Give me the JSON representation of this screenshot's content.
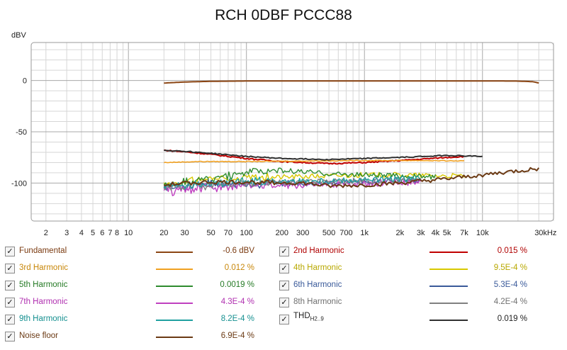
{
  "chart_data": {
    "type": "line",
    "title": "RCH 0DBF PCCC88",
    "ylabel": "dBV",
    "xunit": "kHz",
    "xscale": "log",
    "xlim": [
      1.5,
      40000
    ],
    "ylim": [
      -137,
      37
    ],
    "grid": true,
    "y_ticks": [
      {
        "v": 0,
        "label": "0"
      },
      {
        "v": -50,
        "label": "-50"
      },
      {
        "v": -100,
        "label": "-100"
      }
    ],
    "x_ticks": [
      {
        "v": 2,
        "label": "2"
      },
      {
        "v": 3,
        "label": "3"
      },
      {
        "v": 4,
        "label": "4"
      },
      {
        "v": 5,
        "label": "5"
      },
      {
        "v": 6,
        "label": "6"
      },
      {
        "v": 7,
        "label": "7"
      },
      {
        "v": 8,
        "label": "8"
      },
      {
        "v": 10,
        "label": "10"
      },
      {
        "v": 20,
        "label": "20"
      },
      {
        "v": 30,
        "label": "30"
      },
      {
        "v": 50,
        "label": "50"
      },
      {
        "v": 70,
        "label": "70"
      },
      {
        "v": 100,
        "label": "100"
      },
      {
        "v": 200,
        "label": "200"
      },
      {
        "v": 300,
        "label": "300"
      },
      {
        "v": 500,
        "label": "500"
      },
      {
        "v": 700,
        "label": "700"
      },
      {
        "v": 1000,
        "label": "1k"
      },
      {
        "v": 2000,
        "label": "2k"
      },
      {
        "v": 3000,
        "label": "3k"
      },
      {
        "v": 4000,
        "label": "4k"
      },
      {
        "v": 5000,
        "label": "5k"
      },
      {
        "v": 7000,
        "label": "7k"
      },
      {
        "v": 10000,
        "label": "10k"
      },
      {
        "v": 30000,
        "label": "30kHz"
      }
    ],
    "series": [
      {
        "name": "Fundamental",
        "value": "-0.6 dBV",
        "color": "#8b4513",
        "width": 2,
        "jitter": 0,
        "points": [
          [
            20,
            -2.5
          ],
          [
            30,
            -1.5
          ],
          [
            50,
            -0.8
          ],
          [
            100,
            -0.5
          ],
          [
            1000,
            -0.4
          ],
          [
            10000,
            -0.4
          ],
          [
            20000,
            -0.6
          ],
          [
            27000,
            -1.2
          ],
          [
            30000,
            -2.5
          ]
        ]
      },
      {
        "name": "2nd Harmonic",
        "value": "0.015 %",
        "color": "#c00000",
        "width": 2,
        "jitter": 0.6,
        "points": [
          [
            20,
            -68
          ],
          [
            30,
            -69.5
          ],
          [
            50,
            -72
          ],
          [
            100,
            -76
          ],
          [
            200,
            -79
          ],
          [
            500,
            -81
          ],
          [
            1000,
            -80
          ],
          [
            2000,
            -78
          ],
          [
            5000,
            -75
          ],
          [
            7000,
            -74
          ]
        ]
      },
      {
        "name": "3rd Harmonic",
        "value": "0.012 %",
        "color": "#f0a020",
        "width": 1.6,
        "jitter": 0.4,
        "points": [
          [
            20,
            -80
          ],
          [
            40,
            -79
          ],
          [
            100,
            -79
          ],
          [
            300,
            -78.5
          ],
          [
            1000,
            -78
          ],
          [
            3000,
            -78
          ],
          [
            7000,
            -78.5
          ]
        ]
      },
      {
        "name": "4th Harmonic",
        "value": "9.5E-4 %",
        "color": "#d8c800",
        "width": 1.4,
        "jitter": 2.5,
        "points": [
          [
            20,
            -100
          ],
          [
            30,
            -99
          ],
          [
            50,
            -96
          ],
          [
            100,
            -95
          ],
          [
            200,
            -94
          ],
          [
            500,
            -93
          ],
          [
            1000,
            -92
          ],
          [
            2000,
            -92
          ],
          [
            5000,
            -93
          ],
          [
            7000,
            -93
          ]
        ]
      },
      {
        "name": "5th Harmonic",
        "value": "0.0019 %",
        "color": "#2e8b2e",
        "width": 1.4,
        "jitter": 2.5,
        "points": [
          [
            20,
            -102
          ],
          [
            30,
            -99
          ],
          [
            50,
            -96
          ],
          [
            100,
            -90
          ],
          [
            150,
            -87
          ],
          [
            300,
            -89
          ],
          [
            500,
            -91
          ],
          [
            1000,
            -92
          ],
          [
            2000,
            -93
          ],
          [
            4000,
            -94
          ]
        ]
      },
      {
        "name": "6th Harmonic",
        "value": "5.3E-4 %",
        "color": "#3a5a9a",
        "width": 1.4,
        "jitter": 3,
        "points": [
          [
            20,
            -105
          ],
          [
            30,
            -103
          ],
          [
            50,
            -101
          ],
          [
            100,
            -101
          ],
          [
            300,
            -100
          ],
          [
            1000,
            -98
          ],
          [
            2000,
            -97
          ],
          [
            3000,
            -97
          ]
        ]
      },
      {
        "name": "7th Harmonic",
        "value": "4.3E-4 %",
        "color": "#c040c0",
        "width": 1.4,
        "jitter": 3.5,
        "points": [
          [
            20,
            -108
          ],
          [
            30,
            -106
          ],
          [
            50,
            -104
          ],
          [
            100,
            -103
          ],
          [
            300,
            -102
          ],
          [
            1000,
            -100
          ],
          [
            2000,
            -99
          ],
          [
            3000,
            -99
          ]
        ]
      },
      {
        "name": "8th Harmonic",
        "value": "4.2E-4 %",
        "color": "#808080",
        "width": 1.4,
        "jitter": 3,
        "points": [
          [
            20,
            -104
          ],
          [
            50,
            -102
          ],
          [
            100,
            -100
          ],
          [
            300,
            -99
          ],
          [
            1000,
            -98
          ],
          [
            2000,
            -97
          ],
          [
            3000,
            -97
          ]
        ]
      },
      {
        "name": "9th Harmonic",
        "value": "8.2E-4 %",
        "color": "#20a0a0",
        "width": 1.4,
        "jitter": 3,
        "points": [
          [
            20,
            -103
          ],
          [
            50,
            -101
          ],
          [
            100,
            -99
          ],
          [
            300,
            -98
          ],
          [
            1000,
            -97
          ],
          [
            2000,
            -96
          ],
          [
            3000,
            -96
          ]
        ]
      },
      {
        "name": "THD",
        "value": "0.019 %",
        "color": "#303030",
        "width": 2,
        "jitter": 0.5,
        "points": [
          [
            20,
            -68
          ],
          [
            30,
            -69
          ],
          [
            50,
            -71
          ],
          [
            100,
            -74
          ],
          [
            200,
            -76
          ],
          [
            500,
            -77
          ],
          [
            1000,
            -76
          ],
          [
            2000,
            -75
          ],
          [
            5000,
            -73
          ],
          [
            10000,
            -74
          ]
        ]
      },
      {
        "name": "Noise floor",
        "value": "6.9E-4 %",
        "color": "#6b3a14",
        "width": 2,
        "jitter": 2,
        "points": [
          [
            20,
            -102
          ],
          [
            30,
            -100
          ],
          [
            50,
            -99
          ],
          [
            100,
            -99
          ],
          [
            300,
            -100
          ],
          [
            500,
            -103
          ],
          [
            1000,
            -102
          ],
          [
            2000,
            -100
          ],
          [
            5000,
            -96
          ],
          [
            10000,
            -92
          ],
          [
            20000,
            -88
          ],
          [
            30000,
            -86
          ]
        ]
      }
    ]
  },
  "legend": [
    {
      "label": "Fundamental",
      "value": "-0.6 dBV",
      "color": "#8b4513",
      "label_color": "#7a3a10",
      "checked": "✓"
    },
    {
      "label": "2nd Harmonic",
      "value": "0.015 %",
      "color": "#c00000",
      "label_color": "#b00000",
      "checked": "✓"
    },
    {
      "label": "3rd Harmonic",
      "value": "0.012 %",
      "color": "#f0a020",
      "label_color": "#c8870a",
      "checked": "✓"
    },
    {
      "label": "4th Harmonic",
      "value": "9.5E-4 %",
      "color": "#d8c800",
      "label_color": "#b8a800",
      "checked": "✓"
    },
    {
      "label": "5th Harmonic",
      "value": "0.0019 %",
      "color": "#2e8b2e",
      "label_color": "#257a25",
      "checked": "✓"
    },
    {
      "label": "6th Harmonic",
      "value": "5.3E-4 %",
      "color": "#3a5a9a",
      "label_color": "#3a5a9a",
      "checked": "✓"
    },
    {
      "label": "7th Harmonic",
      "value": "4.3E-4 %",
      "color": "#c040c0",
      "label_color": "#b030b0",
      "checked": "✓"
    },
    {
      "label": "8th Harmonic",
      "value": "4.2E-4 %",
      "color": "#808080",
      "label_color": "#707070",
      "checked": "✓"
    },
    {
      "label": "9th Harmonic",
      "value": "8.2E-4 %",
      "color": "#20a0a0",
      "label_color": "#159090",
      "checked": "✓"
    },
    {
      "label": "THD",
      "label_sub": "H2..9",
      "value": "0.019 %",
      "color": "#303030",
      "label_color": "#222222",
      "checked": "✓"
    },
    {
      "label": "Noise floor",
      "value": "6.9E-4 %",
      "color": "#6b3a14",
      "label_color": "#6b3a14",
      "checked": "✓"
    }
  ]
}
